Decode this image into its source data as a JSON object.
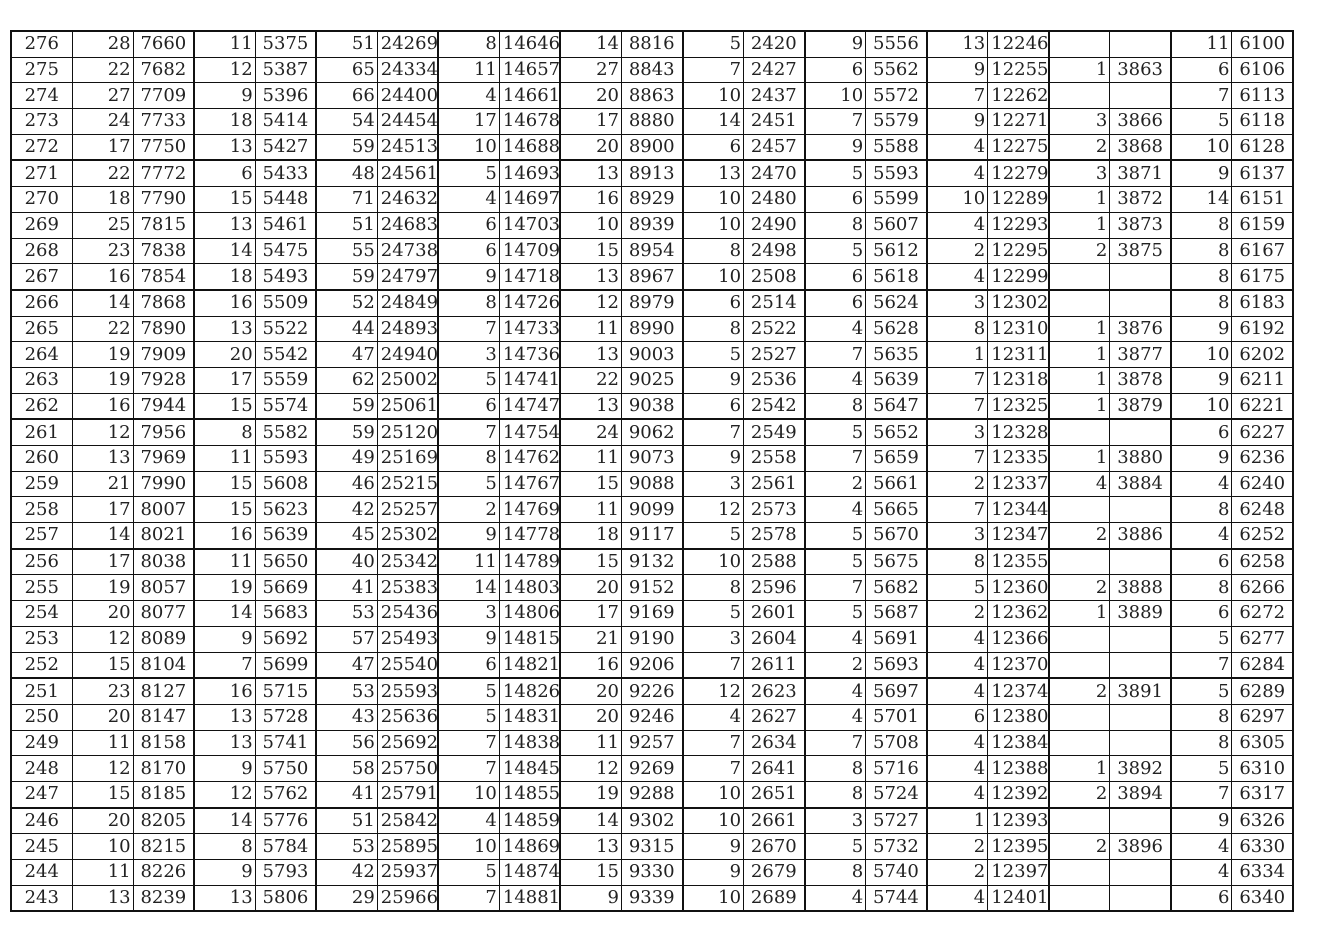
{
  "table": {
    "rows": [
      [
        "276",
        "28",
        "7660",
        "11",
        "5375",
        "51",
        "24269",
        "8",
        "14646",
        "14",
        "8816",
        "5",
        "2420",
        "9",
        "5556",
        "13",
        "12246",
        "",
        "",
        "11",
        "6100"
      ],
      [
        "275",
        "22",
        "7682",
        "12",
        "5387",
        "65",
        "24334",
        "11",
        "14657",
        "27",
        "8843",
        "7",
        "2427",
        "6",
        "5562",
        "9",
        "12255",
        "1",
        "3863",
        "6",
        "6106"
      ],
      [
        "274",
        "27",
        "7709",
        "9",
        "5396",
        "66",
        "24400",
        "4",
        "14661",
        "20",
        "8863",
        "10",
        "2437",
        "10",
        "5572",
        "7",
        "12262",
        "",
        "",
        "7",
        "6113"
      ],
      [
        "273",
        "24",
        "7733",
        "18",
        "5414",
        "54",
        "24454",
        "17",
        "14678",
        "17",
        "8880",
        "14",
        "2451",
        "7",
        "5579",
        "9",
        "12271",
        "3",
        "3866",
        "5",
        "6118"
      ],
      [
        "272",
        "17",
        "7750",
        "13",
        "5427",
        "59",
        "24513",
        "10",
        "14688",
        "20",
        "8900",
        "6",
        "2457",
        "9",
        "5588",
        "4",
        "12275",
        "2",
        "3868",
        "10",
        "6128"
      ],
      [
        "271",
        "22",
        "7772",
        "6",
        "5433",
        "48",
        "24561",
        "5",
        "14693",
        "13",
        "8913",
        "13",
        "2470",
        "5",
        "5593",
        "4",
        "12279",
        "3",
        "3871",
        "9",
        "6137"
      ],
      [
        "270",
        "18",
        "7790",
        "15",
        "5448",
        "71",
        "24632",
        "4",
        "14697",
        "16",
        "8929",
        "10",
        "2480",
        "6",
        "5599",
        "10",
        "12289",
        "1",
        "3872",
        "14",
        "6151"
      ],
      [
        "269",
        "25",
        "7815",
        "13",
        "5461",
        "51",
        "24683",
        "6",
        "14703",
        "10",
        "8939",
        "10",
        "2490",
        "8",
        "5607",
        "4",
        "12293",
        "1",
        "3873",
        "8",
        "6159"
      ],
      [
        "268",
        "23",
        "7838",
        "14",
        "5475",
        "55",
        "24738",
        "6",
        "14709",
        "15",
        "8954",
        "8",
        "2498",
        "5",
        "5612",
        "2",
        "12295",
        "2",
        "3875",
        "8",
        "6167"
      ],
      [
        "267",
        "16",
        "7854",
        "18",
        "5493",
        "59",
        "24797",
        "9",
        "14718",
        "13",
        "8967",
        "10",
        "2508",
        "6",
        "5618",
        "4",
        "12299",
        "",
        "",
        "8",
        "6175"
      ],
      [
        "266",
        "14",
        "7868",
        "16",
        "5509",
        "52",
        "24849",
        "8",
        "14726",
        "12",
        "8979",
        "6",
        "2514",
        "6",
        "5624",
        "3",
        "12302",
        "",
        "",
        "8",
        "6183"
      ],
      [
        "265",
        "22",
        "7890",
        "13",
        "5522",
        "44",
        "24893",
        "7",
        "14733",
        "11",
        "8990",
        "8",
        "2522",
        "4",
        "5628",
        "8",
        "12310",
        "1",
        "3876",
        "9",
        "6192"
      ],
      [
        "264",
        "19",
        "7909",
        "20",
        "5542",
        "47",
        "24940",
        "3",
        "14736",
        "13",
        "9003",
        "5",
        "2527",
        "7",
        "5635",
        "1",
        "12311",
        "1",
        "3877",
        "10",
        "6202"
      ],
      [
        "263",
        "19",
        "7928",
        "17",
        "5559",
        "62",
        "25002",
        "5",
        "14741",
        "22",
        "9025",
        "9",
        "2536",
        "4",
        "5639",
        "7",
        "12318",
        "1",
        "3878",
        "9",
        "6211"
      ],
      [
        "262",
        "16",
        "7944",
        "15",
        "5574",
        "59",
        "25061",
        "6",
        "14747",
        "13",
        "9038",
        "6",
        "2542",
        "8",
        "5647",
        "7",
        "12325",
        "1",
        "3879",
        "10",
        "6221"
      ],
      [
        "261",
        "12",
        "7956",
        "8",
        "5582",
        "59",
        "25120",
        "7",
        "14754",
        "24",
        "9062",
        "7",
        "2549",
        "5",
        "5652",
        "3",
        "12328",
        "",
        "",
        "6",
        "6227"
      ],
      [
        "260",
        "13",
        "7969",
        "11",
        "5593",
        "49",
        "25169",
        "8",
        "14762",
        "11",
        "9073",
        "9",
        "2558",
        "7",
        "5659",
        "7",
        "12335",
        "1",
        "3880",
        "9",
        "6236"
      ],
      [
        "259",
        "21",
        "7990",
        "15",
        "5608",
        "46",
        "25215",
        "5",
        "14767",
        "15",
        "9088",
        "3",
        "2561",
        "2",
        "5661",
        "2",
        "12337",
        "4",
        "3884",
        "4",
        "6240"
      ],
      [
        "258",
        "17",
        "8007",
        "15",
        "5623",
        "42",
        "25257",
        "2",
        "14769",
        "11",
        "9099",
        "12",
        "2573",
        "4",
        "5665",
        "7",
        "12344",
        "",
        "",
        "8",
        "6248"
      ],
      [
        "257",
        "14",
        "8021",
        "16",
        "5639",
        "45",
        "25302",
        "9",
        "14778",
        "18",
        "9117",
        "5",
        "2578",
        "5",
        "5670",
        "3",
        "12347",
        "2",
        "3886",
        "4",
        "6252"
      ],
      [
        "256",
        "17",
        "8038",
        "11",
        "5650",
        "40",
        "25342",
        "11",
        "14789",
        "15",
        "9132",
        "10",
        "2588",
        "5",
        "5675",
        "8",
        "12355",
        "",
        "",
        "6",
        "6258"
      ],
      [
        "255",
        "19",
        "8057",
        "19",
        "5669",
        "41",
        "25383",
        "14",
        "14803",
        "20",
        "9152",
        "8",
        "2596",
        "7",
        "5682",
        "5",
        "12360",
        "2",
        "3888",
        "8",
        "6266"
      ],
      [
        "254",
        "20",
        "8077",
        "14",
        "5683",
        "53",
        "25436",
        "3",
        "14806",
        "17",
        "9169",
        "5",
        "2601",
        "5",
        "5687",
        "2",
        "12362",
        "1",
        "3889",
        "6",
        "6272"
      ],
      [
        "253",
        "12",
        "8089",
        "9",
        "5692",
        "57",
        "25493",
        "9",
        "14815",
        "21",
        "9190",
        "3",
        "2604",
        "4",
        "5691",
        "4",
        "12366",
        "",
        "",
        "5",
        "6277"
      ],
      [
        "252",
        "15",
        "8104",
        "7",
        "5699",
        "47",
        "25540",
        "6",
        "14821",
        "16",
        "9206",
        "7",
        "2611",
        "2",
        "5693",
        "4",
        "12370",
        "",
        "",
        "7",
        "6284"
      ],
      [
        "251",
        "23",
        "8127",
        "16",
        "5715",
        "53",
        "25593",
        "5",
        "14826",
        "20",
        "9226",
        "12",
        "2623",
        "4",
        "5697",
        "4",
        "12374",
        "2",
        "3891",
        "5",
        "6289"
      ],
      [
        "250",
        "20",
        "8147",
        "13",
        "5728",
        "43",
        "25636",
        "5",
        "14831",
        "20",
        "9246",
        "4",
        "2627",
        "4",
        "5701",
        "6",
        "12380",
        "",
        "",
        "8",
        "6297"
      ],
      [
        "249",
        "11",
        "8158",
        "13",
        "5741",
        "56",
        "25692",
        "7",
        "14838",
        "11",
        "9257",
        "7",
        "2634",
        "7",
        "5708",
        "4",
        "12384",
        "",
        "",
        "8",
        "6305"
      ],
      [
        "248",
        "12",
        "8170",
        "9",
        "5750",
        "58",
        "25750",
        "7",
        "14845",
        "12",
        "9269",
        "7",
        "2641",
        "8",
        "5716",
        "4",
        "12388",
        "1",
        "3892",
        "5",
        "6310"
      ],
      [
        "247",
        "15",
        "8185",
        "12",
        "5762",
        "41",
        "25791",
        "10",
        "14855",
        "19",
        "9288",
        "10",
        "2651",
        "8",
        "5724",
        "4",
        "12392",
        "2",
        "3894",
        "7",
        "6317"
      ],
      [
        "246",
        "20",
        "8205",
        "14",
        "5776",
        "51",
        "25842",
        "4",
        "14859",
        "14",
        "9302",
        "10",
        "2661",
        "3",
        "5727",
        "1",
        "12393",
        "",
        "",
        "9",
        "6326"
      ],
      [
        "245",
        "10",
        "8215",
        "8",
        "5784",
        "53",
        "25895",
        "10",
        "14869",
        "13",
        "9315",
        "9",
        "2670",
        "5",
        "5732",
        "2",
        "12395",
        "2",
        "3896",
        "4",
        "6330"
      ],
      [
        "244",
        "11",
        "8226",
        "9",
        "5793",
        "42",
        "25937",
        "5",
        "14874",
        "15",
        "9330",
        "9",
        "2679",
        "8",
        "5740",
        "2",
        "12397",
        "",
        "",
        "4",
        "6334"
      ],
      [
        "243",
        "13",
        "8239",
        "13",
        "5806",
        "29",
        "25966",
        "7",
        "14881",
        "9",
        "9339",
        "10",
        "2689",
        "4",
        "5744",
        "4",
        "12401",
        "",
        "",
        "6",
        "6340"
      ]
    ]
  }
}
